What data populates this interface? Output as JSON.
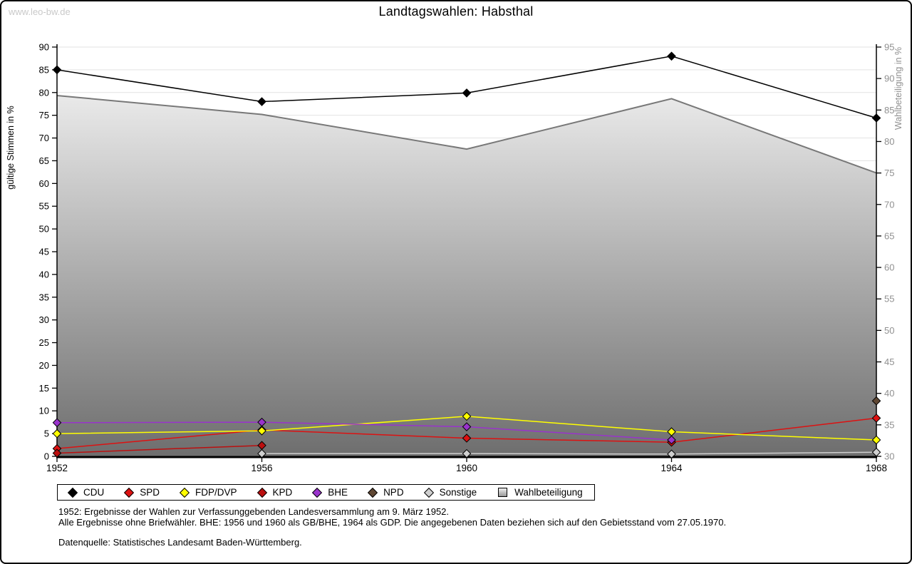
{
  "watermark": "www.leo-bw.de",
  "title": "Landtagswahlen: Habsthal",
  "footnotes": {
    "line1": "1952: Ergebnisse der Wahlen zur Verfassunggebenden Landesversammlung am 9. März 1952.",
    "line2": "Alle Ergebnisse ohne Briefwähler. BHE: 1956 und 1960 als GB/BHE, 1964 als GDP. Die angegebenen Daten beziehen sich auf den Gebietsstand vom 27.05.1970.",
    "source": "Datenquelle: Statistisches Landesamt Baden-Württemberg."
  },
  "colors": {
    "page_border": "#000000",
    "grid": "#e3e3e3",
    "axis": "#000000",
    "right_axis_text": "#909090",
    "watermark": "#c9c9c9",
    "area_gradient_top": "#fafafa",
    "area_gradient_bottom": "#6e6e6e",
    "area_outline": "#787878"
  },
  "chart_data": {
    "type": "line",
    "title": "Landtagswahlen: Habsthal",
    "categories": [
      "1952",
      "1956",
      "1960",
      "1964",
      "1968"
    ],
    "axes": {
      "left": {
        "label": "gültige Stimmen in %",
        "min": 0,
        "max": 90,
        "step": 5,
        "ticks": [
          0,
          5,
          10,
          15,
          20,
          25,
          30,
          35,
          40,
          45,
          50,
          55,
          60,
          65,
          70,
          75,
          80,
          85,
          90
        ]
      },
      "right": {
        "label": "Wahlbeteiligung in %",
        "min": 30,
        "max": 95,
        "step": 5,
        "ticks": [
          30,
          35,
          40,
          45,
          50,
          55,
          60,
          65,
          70,
          75,
          80,
          85,
          90,
          95
        ]
      }
    },
    "grid": true,
    "legend_position": "bottom",
    "series": [
      {
        "name": "CDU",
        "color": "#000000",
        "axis": "left",
        "type": "line",
        "marker": "diamond",
        "values": [
          85.0,
          78.0,
          79.9,
          88.0,
          74.4
        ]
      },
      {
        "name": "SPD",
        "color": "#dd1111",
        "axis": "left",
        "type": "line",
        "marker": "diamond",
        "values": [
          1.7,
          5.8,
          4.0,
          3.1,
          8.4
        ]
      },
      {
        "name": "FDP/DVP",
        "color": "#ffff00",
        "axis": "left",
        "type": "line",
        "marker": "diamond",
        "values": [
          5.0,
          5.6,
          8.8,
          5.4,
          3.6
        ]
      },
      {
        "name": "KPD",
        "color": "#bb0f0f",
        "axis": "left",
        "type": "line",
        "marker": "diamond",
        "values": [
          0.7,
          2.4,
          null,
          null,
          null
        ]
      },
      {
        "name": "BHE",
        "color": "#9933cc",
        "axis": "left",
        "type": "line",
        "marker": "diamond",
        "values": [
          7.4,
          7.5,
          6.5,
          3.6,
          null
        ]
      },
      {
        "name": "NPD",
        "color": "#5f4733",
        "axis": "left",
        "type": "line",
        "marker": "diamond",
        "values": [
          null,
          null,
          null,
          null,
          12.2
        ]
      },
      {
        "name": "Sonstige",
        "color": "#cfcfcf",
        "axis": "left",
        "type": "line",
        "marker": "diamond",
        "values": [
          null,
          0.6,
          0.6,
          0.5,
          0.9
        ]
      },
      {
        "name": "Wahlbeteiligung",
        "color": "#8f8f8f",
        "axis": "right",
        "type": "area",
        "marker": "square",
        "values": [
          87.3,
          84.3,
          78.8,
          86.8,
          75.0
        ]
      }
    ]
  }
}
